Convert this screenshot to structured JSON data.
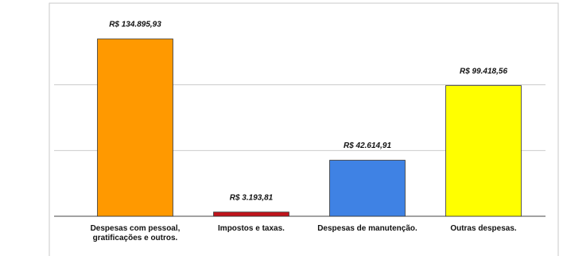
{
  "chart_data": {
    "type": "bar",
    "categories": [
      "Despesas com pessoal, gratificações e outros.",
      "Impostos e taxas.",
      "Despesas de manutenção.",
      "Outras despesas."
    ],
    "values": [
      134895.93,
      3193.81,
      42614.91,
      99418.56
    ],
    "value_labels": [
      "R$ 134.895,93",
      "R$ 3.193,81",
      "R$ 42.614,91",
      "R$ 99.418,56"
    ],
    "colors": [
      "#ff9900",
      "#c0141c",
      "#3f82e4",
      "#ffff00"
    ],
    "ylim": [
      0,
      150000
    ],
    "yticks": [
      0,
      50000,
      100000
    ],
    "grid": true
  }
}
